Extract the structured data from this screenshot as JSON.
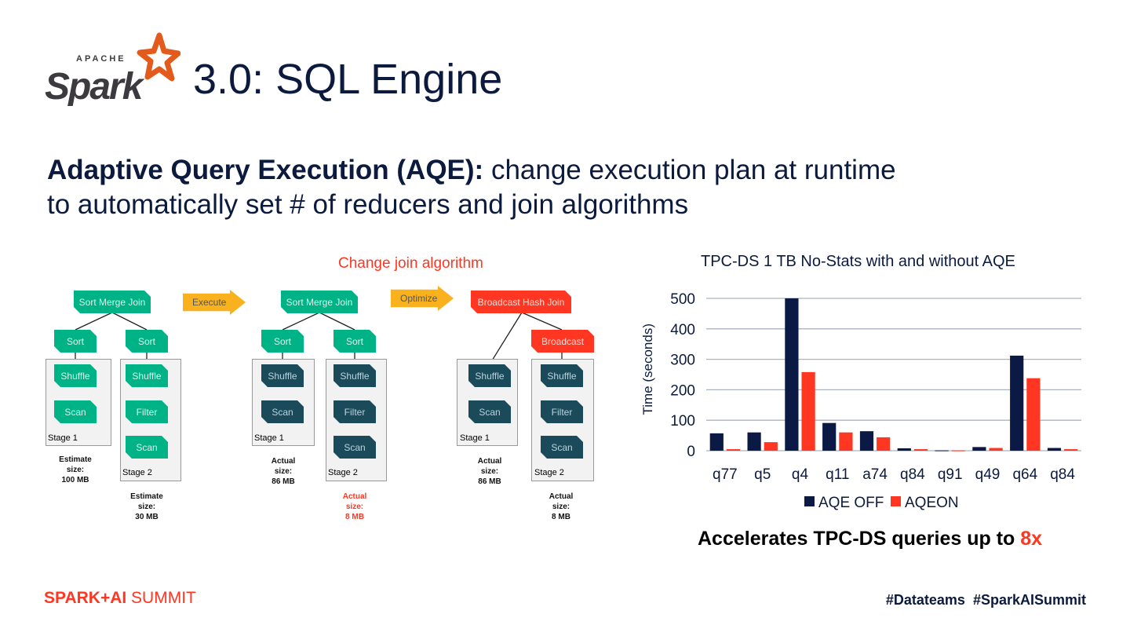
{
  "header": {
    "logo_text": "APACHE Spark",
    "title": "3.0: SQL Engine"
  },
  "subtitle": {
    "bold": "Adaptive Query Execution (AQE):",
    "rest_line1": " change execution plan at runtime",
    "line2": "to automatically set # of reducers and join algorithms"
  },
  "diagram": {
    "change_label": "Change join algorithm",
    "execute": "Execute",
    "optimize": "Optimize",
    "sort_merge_join": "Sort Merge Join",
    "broadcast_hash_join": "Broadcast Hash Join",
    "sort": "Sort",
    "shuffle": "Shuffle",
    "scan": "Scan",
    "filter": "Filter",
    "broadcast": "Broadcast",
    "stage1": "Stage 1",
    "stage2": "Stage 2",
    "p1_s1_size": [
      "Estimate",
      "size:",
      "100 MB"
    ],
    "p1_s2_size": [
      "Estimate",
      "size:",
      "30 MB"
    ],
    "p2_s1_size": [
      "Actual",
      "size:",
      "86 MB"
    ],
    "p2_s2_size": [
      "Actual",
      "size:",
      "8 MB"
    ],
    "p3_s1_size": [
      "Actual",
      "size:",
      "86 MB"
    ],
    "p3_s2_size": [
      "Actual",
      "size:",
      "8 MB"
    ]
  },
  "chart_data": {
    "type": "bar",
    "title": "TPC-DS 1 TB No-Stats with and without AQE",
    "ylabel": "Time (seconds)",
    "xlabel": "",
    "ylim": [
      0,
      500
    ],
    "yticks": [
      0,
      100,
      200,
      300,
      400,
      500
    ],
    "grid": true,
    "legend": "bottom",
    "categories": [
      "q77",
      "q5",
      "q4",
      "q11",
      "a74",
      "q84",
      "q91",
      "q49",
      "q64",
      "q84"
    ],
    "series": [
      {
        "name": "AQE OFF",
        "color": "#0b1a45",
        "values": [
          57,
          60,
          500,
          91,
          64,
          8,
          1,
          12,
          312,
          9
        ]
      },
      {
        "name": "AQEON",
        "color": "#ff3621",
        "values": [
          5,
          28,
          258,
          60,
          44,
          5,
          1,
          9,
          238,
          5
        ]
      }
    ]
  },
  "callout": {
    "text": "Accelerates TPC-DS queries up to ",
    "highlight": "8x"
  },
  "footer": {
    "brand": "SPARK+AI",
    "brand2": " SUMMIT",
    "hashtags": "#Datateams  #SparkAISummit"
  }
}
